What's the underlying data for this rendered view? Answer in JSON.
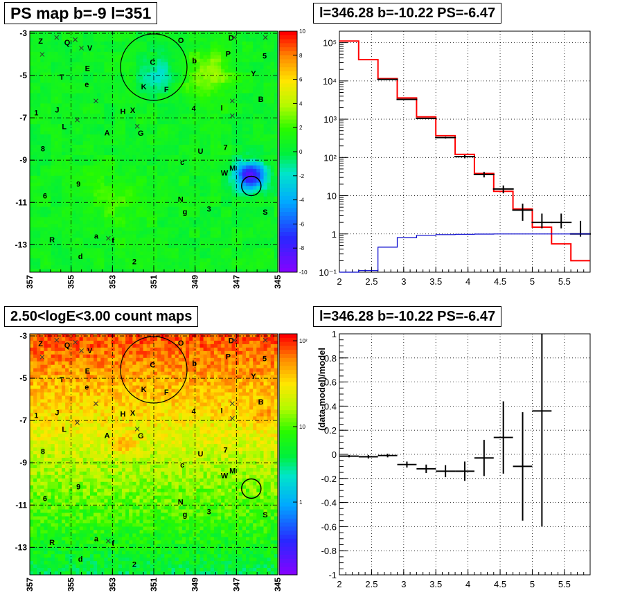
{
  "titles": {
    "tl": "PS map b=-9 l=351",
    "tr": "l=346.28 b=-10.22 PS=-6.47",
    "bl": "2.50<logE<3.00 count maps",
    "br": "l=346.28 b=-10.22 PS=-6.47"
  },
  "sky_axes": {
    "x_ticks": [
      "357",
      "355",
      "353",
      "351",
      "349",
      "347",
      "345"
    ],
    "y_ticks": [
      "-3",
      "-5",
      "-7",
      "-9",
      "-11",
      "-13"
    ]
  },
  "ps_colorbar": {
    "ticks": [
      "10",
      "8",
      "6",
      "4",
      "2",
      "0",
      "-2",
      "-4",
      "-6",
      "-8",
      "-10"
    ]
  },
  "count_colorbar": {
    "ticks": [
      "10²",
      "10",
      "1"
    ]
  },
  "labels": [
    {
      "t": "Z"
    },
    {
      "t": "Q"
    },
    {
      "t": "V"
    },
    {
      "t": "O"
    },
    {
      "t": "D"
    },
    {
      "t": "P"
    },
    {
      "t": "5"
    },
    {
      "t": "C"
    },
    {
      "t": "b"
    },
    {
      "t": "E"
    },
    {
      "t": "Y"
    },
    {
      "t": "T"
    },
    {
      "t": "e"
    },
    {
      "t": "K"
    },
    {
      "t": "F"
    },
    {
      "t": "B"
    },
    {
      "t": "J"
    },
    {
      "t": "H"
    },
    {
      "t": "X"
    },
    {
      "t": "4"
    },
    {
      "t": "I"
    },
    {
      "t": "1"
    },
    {
      "t": "L"
    },
    {
      "t": "A"
    },
    {
      "t": "G"
    },
    {
      "t": "7"
    },
    {
      "t": "U"
    },
    {
      "t": "8"
    },
    {
      "t": "M"
    },
    {
      "t": "W"
    },
    {
      "t": "c"
    },
    {
      "t": "9"
    },
    {
      "t": "6"
    },
    {
      "t": "N"
    },
    {
      "t": "3"
    },
    {
      "t": "g"
    },
    {
      "t": "S"
    },
    {
      "t": "a"
    },
    {
      "t": "f"
    },
    {
      "t": "R"
    },
    {
      "t": "d"
    },
    {
      "t": "2"
    }
  ],
  "chart_data": [
    {
      "type": "heatmap",
      "title": "PS map b=-9 l=351",
      "xlim": [
        357,
        345
      ],
      "ylim": [
        -14.3,
        -2.9
      ],
      "colorbar_range": [
        -10,
        10
      ],
      "colorbar_ticks": [
        10,
        8,
        6,
        4,
        2,
        0,
        -2,
        -4,
        -6,
        -8,
        -10
      ]
    },
    {
      "type": "line",
      "title": "l=346.28 b=-10.22 PS=-6.47",
      "ylog": true,
      "xlim": [
        2,
        5.9
      ],
      "ylim": [
        0.1,
        200000
      ],
      "x_ticks": [
        2,
        2.5,
        3,
        3.5,
        4,
        4.5,
        5,
        5.5
      ],
      "y_ticks": [
        "10⁻¹",
        "1",
        "10",
        "10²",
        "10³",
        "10⁴",
        "10⁵"
      ],
      "series": [
        {
          "color": "#ff0000",
          "style": "step",
          "edges": [
            2.0,
            2.3,
            2.6,
            2.9,
            3.2,
            3.5,
            3.8,
            4.1,
            4.4,
            4.7,
            5.0,
            5.3,
            5.6,
            5.9
          ],
          "values": [
            110000,
            36000,
            11500,
            3600,
            1150,
            370,
            120,
            38,
            13,
            4.5,
            1.5,
            0.55,
            0.2
          ]
        },
        {
          "color": "#000000",
          "style": "points",
          "x": [
            2.75,
            3.05,
            3.35,
            3.65,
            3.95,
            4.25,
            4.55,
            4.85,
            5.15,
            5.45,
            5.75
          ],
          "y": [
            11000,
            3300,
            1050,
            330,
            105,
            36,
            15,
            4.2,
            2,
            2,
            1
          ],
          "yerr_lo": [
            10900,
            3240,
            1018,
            312,
            95,
            30,
            11.5,
            2.2,
            1.4,
            1.4,
            0.85
          ],
          "yerr_hi": [
            11100,
            3360,
            1082,
            348,
            115,
            42,
            18.5,
            6.2,
            3.4,
            3.4,
            2.2
          ]
        },
        {
          "color": "#0000cc",
          "style": "step",
          "edges": [
            2.0,
            2.3,
            2.6,
            2.9,
            3.2,
            3.5,
            3.8,
            4.1,
            4.4,
            4.7,
            5.0,
            5.3,
            5.6,
            5.9
          ],
          "values": [
            0.1,
            0.11,
            0.45,
            0.8,
            0.92,
            0.96,
            0.98,
            0.99,
            1,
            1,
            1,
            1,
            1
          ]
        }
      ]
    },
    {
      "type": "heatmap",
      "title": "2.50<logE<3.00 count maps",
      "xlim": [
        357,
        345
      ],
      "ylim": [
        -14.3,
        -2.9
      ],
      "colorbar_scale": "log",
      "colorbar_ticks": [
        "10²",
        "10",
        "1"
      ]
    },
    {
      "type": "scatter",
      "title": "l=346.28 b=-10.22 PS=-6.47",
      "ylabel": "(data-model)/model",
      "xlim": [
        2,
        5.9
      ],
      "ylim": [
        -1,
        1
      ],
      "x_ticks": [
        2,
        2.5,
        3,
        3.5,
        4,
        4.5,
        5,
        5.5
      ],
      "y_ticks": [
        -1,
        -0.8,
        -0.6,
        -0.4,
        -0.2,
        0,
        0.2,
        0.4,
        0.6,
        0.8,
        1
      ],
      "points": [
        {
          "x": 2.15,
          "y": -0.015,
          "xerr": 0.15,
          "yerr": 0.01
        },
        {
          "x": 2.45,
          "y": -0.02,
          "xerr": 0.15,
          "yerr": 0.015
        },
        {
          "x": 2.75,
          "y": -0.01,
          "xerr": 0.15,
          "yerr": 0.015
        },
        {
          "x": 3.05,
          "y": -0.085,
          "xerr": 0.15,
          "yerr": 0.025
        },
        {
          "x": 3.35,
          "y": -0.12,
          "xerr": 0.15,
          "yerr": 0.035
        },
        {
          "x": 3.65,
          "y": -0.14,
          "xerr": 0.15,
          "yerr": 0.05
        },
        {
          "x": 3.95,
          "y": -0.14,
          "xerr": 0.15,
          "yerr": 0.08
        },
        {
          "x": 4.25,
          "y": -0.03,
          "xerr": 0.15,
          "yerr": 0.15
        },
        {
          "x": 4.55,
          "y": 0.14,
          "xerr": 0.15,
          "yerr": 0.3
        },
        {
          "x": 4.85,
          "y": -0.1,
          "xerr": 0.15,
          "yerr": 0.45
        },
        {
          "x": 5.15,
          "y": 0.36,
          "xerr": 0.15,
          "yerr": 0.96
        }
      ]
    }
  ]
}
